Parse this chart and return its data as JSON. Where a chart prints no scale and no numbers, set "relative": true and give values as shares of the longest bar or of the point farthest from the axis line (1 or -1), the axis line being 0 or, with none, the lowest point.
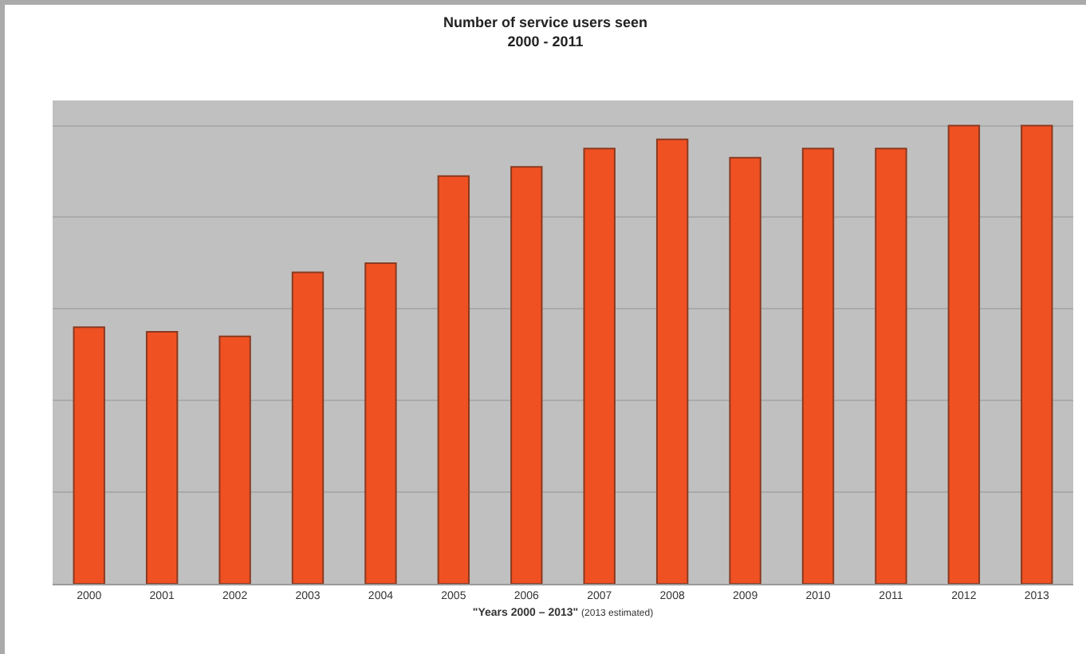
{
  "chart_data": {
    "type": "bar",
    "title": "Number of service users seen\n2000 - 2011",
    "xlabel": "\"Years 2000 – 2013\" (2013 estimated)",
    "categories": [
      "2000",
      "2001",
      "2002",
      "2003",
      "2004",
      "2005",
      "2006",
      "2007",
      "2008",
      "2009",
      "2010",
      "2011",
      "2012",
      "2013"
    ],
    "values": [
      0.56,
      0.55,
      0.54,
      0.68,
      0.7,
      0.89,
      0.91,
      0.95,
      0.97,
      0.93,
      0.95,
      0.95,
      1,
      1
    ],
    "color": "#f05122",
    "relative": true,
    "grid": "y"
  }
}
